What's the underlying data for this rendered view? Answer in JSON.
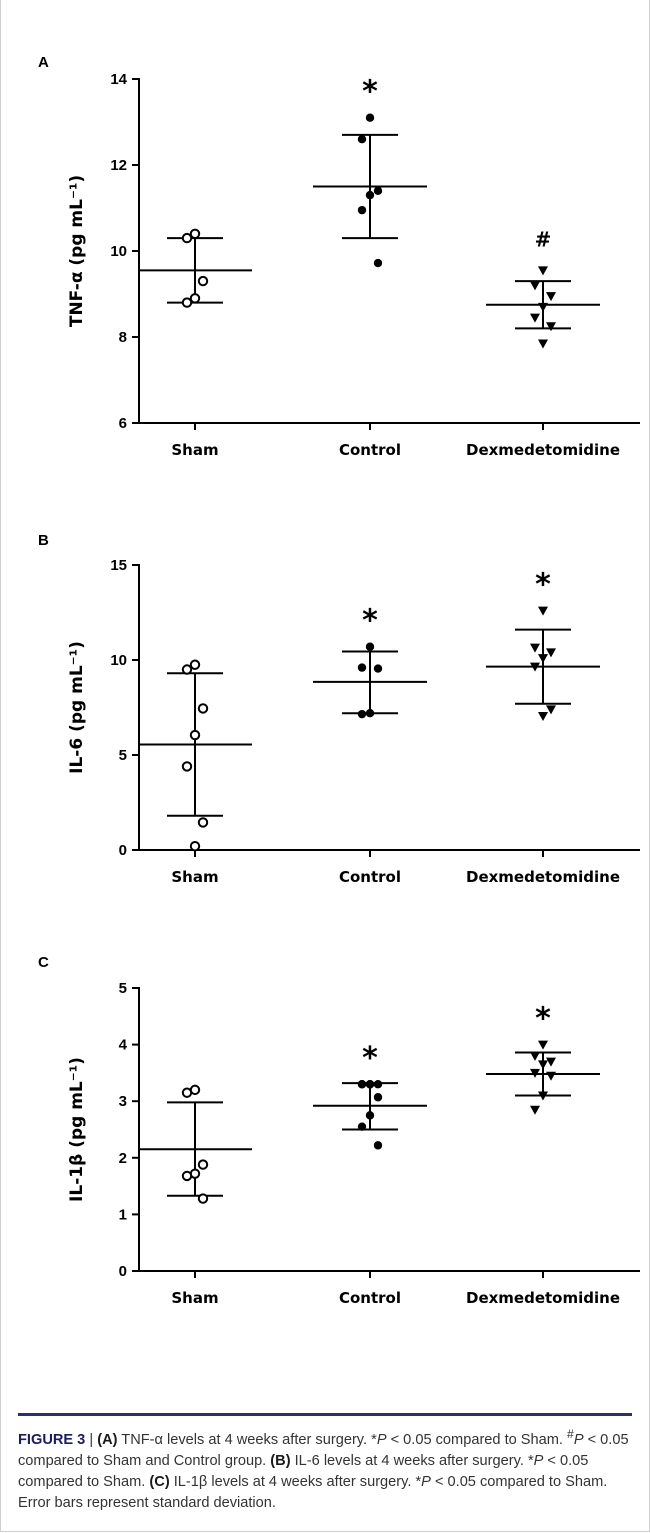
{
  "chart_data": [
    {
      "type": "scatter",
      "panel": "A",
      "ylabel": "TNF-α (pg mL⁻¹)",
      "ylim": [
        6,
        14
      ],
      "yticks": [
        "6",
        "8",
        "10",
        "12",
        "14"
      ],
      "categories": [
        "Sham",
        "Control",
        "Dexmedetomidine"
      ],
      "groups": [
        {
          "name": "Sham",
          "marker": "circle-open",
          "points": [
            10.4,
            10.3,
            9.3,
            8.9,
            8.8
          ],
          "mean": 9.55,
          "sd_low": 8.8,
          "sd_high": 10.3,
          "sig": ""
        },
        {
          "name": "Control",
          "marker": "circle-filled",
          "points": [
            13.1,
            12.6,
            11.4,
            11.3,
            10.95,
            9.72
          ],
          "mean": 11.5,
          "sd_low": 10.3,
          "sd_high": 12.7,
          "sig": "*"
        },
        {
          "name": "Dexmedetomidine",
          "marker": "triangle-down",
          "points": [
            9.55,
            9.2,
            8.95,
            8.7,
            8.45,
            8.25,
            7.85
          ],
          "mean": 8.75,
          "sd_low": 8.2,
          "sd_high": 9.3,
          "sig": "#"
        }
      ]
    },
    {
      "type": "scatter",
      "panel": "B",
      "ylabel": "IL-6 (pg mL⁻¹)",
      "ylim": [
        0,
        15
      ],
      "yticks": [
        "0",
        "5",
        "10",
        "15"
      ],
      "categories": [
        "Sham",
        "Control",
        "Dexmedetomidine"
      ],
      "groups": [
        {
          "name": "Sham",
          "marker": "circle-open",
          "points": [
            9.75,
            9.5,
            7.45,
            6.05,
            4.4,
            1.45,
            0.2
          ],
          "mean": 5.55,
          "sd_low": 1.8,
          "sd_high": 9.3,
          "sig": ""
        },
        {
          "name": "Control",
          "marker": "circle-filled",
          "points": [
            10.7,
            9.6,
            9.55,
            7.2,
            7.15
          ],
          "mean": 8.85,
          "sd_low": 7.2,
          "sd_high": 10.45,
          "sig": "*"
        },
        {
          "name": "Dexmedetomidine",
          "marker": "triangle-down",
          "points": [
            12.6,
            10.65,
            10.4,
            10.1,
            9.65,
            7.4,
            7.05
          ],
          "mean": 9.65,
          "sd_low": 7.7,
          "sd_high": 11.6,
          "sig": "*"
        }
      ]
    },
    {
      "type": "scatter",
      "panel": "C",
      "ylabel": "IL-1β (pg mL⁻¹)",
      "ylim": [
        0,
        5
      ],
      "yticks": [
        "0",
        "1",
        "2",
        "3",
        "4",
        "5"
      ],
      "categories": [
        "Sham",
        "Control",
        "Dexmedetomidine"
      ],
      "groups": [
        {
          "name": "Sham",
          "marker": "circle-open",
          "points": [
            3.2,
            3.15,
            1.88,
            1.72,
            1.68,
            1.28
          ],
          "mean": 2.15,
          "sd_low": 1.33,
          "sd_high": 2.98,
          "sig": ""
        },
        {
          "name": "Control",
          "marker": "circle-filled",
          "points": [
            3.3,
            3.3,
            3.3,
            3.3,
            3.3,
            3.07,
            2.75,
            2.55,
            2.22
          ],
          "mean": 2.92,
          "sd_low": 2.5,
          "sd_high": 3.32,
          "sig": "*"
        },
        {
          "name": "Dexmedetomidine",
          "marker": "triangle-down",
          "points": [
            4.0,
            3.8,
            3.7,
            3.65,
            3.5,
            3.45,
            3.1,
            2.85
          ],
          "mean": 3.48,
          "sd_low": 3.1,
          "sd_high": 3.86,
          "sig": "*"
        }
      ]
    }
  ],
  "caption": {
    "figure_label": "FIGURE 3",
    "separator": " | ",
    "part_a_label": "(A)",
    "part_a_text": " TNF-α levels at 4 weeks after surgery. ",
    "sig_star": "*",
    "p_text": "P",
    "lt_sham": " < 0.05 compared to Sham. ",
    "sig_hash": "#",
    "lt_sham_control": " < 0.05 compared to Sham and Control group. ",
    "part_b_label": "(B)",
    "part_b_text": " IL-6 levels at 4 weeks after surgery. ",
    "part_c_label": "(C)",
    "part_c_text": " IL-1β levels at 4 weeks after surgery. ",
    "error_text": "Error bars represent standard deviation."
  }
}
